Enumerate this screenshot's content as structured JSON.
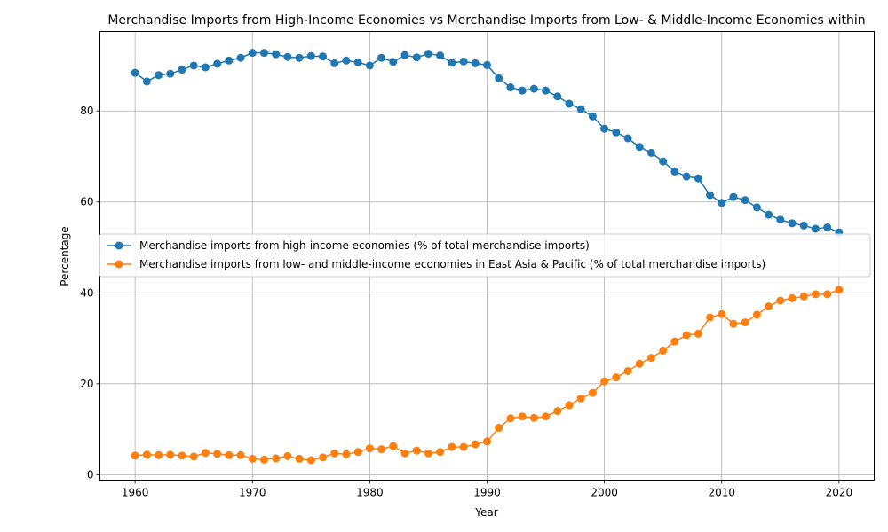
{
  "chart_data": {
    "type": "line",
    "title": "Merchandise Imports from High-Income Economies vs Merchandise Imports from Low- & Middle-Income Economies within",
    "xlabel": "Year",
    "ylabel": "Percentage",
    "xlim": [
      1957,
      2023
    ],
    "ylim": [
      -1.2,
      97.5
    ],
    "x_ticks": [
      1960,
      1970,
      1980,
      1990,
      2000,
      2010,
      2020
    ],
    "y_ticks": [
      0,
      20,
      40,
      60,
      80
    ],
    "grid": true,
    "legend_position": "center-left",
    "x": [
      1960,
      1961,
      1962,
      1963,
      1964,
      1965,
      1966,
      1967,
      1968,
      1969,
      1970,
      1971,
      1972,
      1973,
      1974,
      1975,
      1976,
      1977,
      1978,
      1979,
      1980,
      1981,
      1982,
      1983,
      1984,
      1985,
      1986,
      1987,
      1988,
      1989,
      1990,
      1991,
      1992,
      1993,
      1994,
      1995,
      1996,
      1997,
      1998,
      1999,
      2000,
      2001,
      2002,
      2003,
      2004,
      2005,
      2006,
      2007,
      2008,
      2009,
      2010,
      2011,
      2012,
      2013,
      2014,
      2015,
      2016,
      2017,
      2018,
      2019,
      2020
    ],
    "series": [
      {
        "name": "Merchandise imports from high-income economies (% of total merchandise imports)",
        "color": "#1f77b4",
        "values": [
          88.4,
          86.5,
          87.9,
          88.2,
          89.1,
          90.0,
          89.6,
          90.4,
          91.1,
          91.7,
          92.8,
          92.8,
          92.5,
          91.9,
          91.7,
          92.1,
          92.0,
          90.5,
          91.1,
          90.7,
          90.0,
          91.7,
          90.8,
          92.3,
          91.8,
          92.6,
          92.2,
          90.6,
          90.9,
          90.5,
          90.1,
          87.2,
          85.2,
          84.5,
          84.9,
          84.5,
          83.2,
          81.6,
          80.4,
          78.8,
          76.1,
          75.3,
          74.0,
          72.1,
          70.8,
          68.9,
          66.7,
          65.6,
          65.2,
          61.5,
          59.8,
          61.1,
          60.4,
          58.8,
          57.2,
          56.1,
          55.3,
          54.8,
          54.1,
          54.4,
          53.3
        ]
      },
      {
        "name": "Merchandise imports from low- and middle-income economies in East Asia & Pacific (% of total merchandise imports)",
        "color": "#ff7f0e",
        "values": [
          4.2,
          4.4,
          4.3,
          4.4,
          4.2,
          4.0,
          4.8,
          4.6,
          4.3,
          4.3,
          3.5,
          3.3,
          3.6,
          4.1,
          3.5,
          3.2,
          3.8,
          4.7,
          4.5,
          5.0,
          5.8,
          5.6,
          6.3,
          4.7,
          5.3,
          4.7,
          5.0,
          6.1,
          6.1,
          6.7,
          7.3,
          10.3,
          12.4,
          12.8,
          12.5,
          12.8,
          14.0,
          15.3,
          16.8,
          18.0,
          20.5,
          21.4,
          22.8,
          24.4,
          25.7,
          27.3,
          29.3,
          30.7,
          31.0,
          34.6,
          35.3,
          33.2,
          33.5,
          35.2,
          37.0,
          38.3,
          38.8,
          39.2,
          39.7,
          39.7,
          40.7
        ]
      }
    ]
  }
}
